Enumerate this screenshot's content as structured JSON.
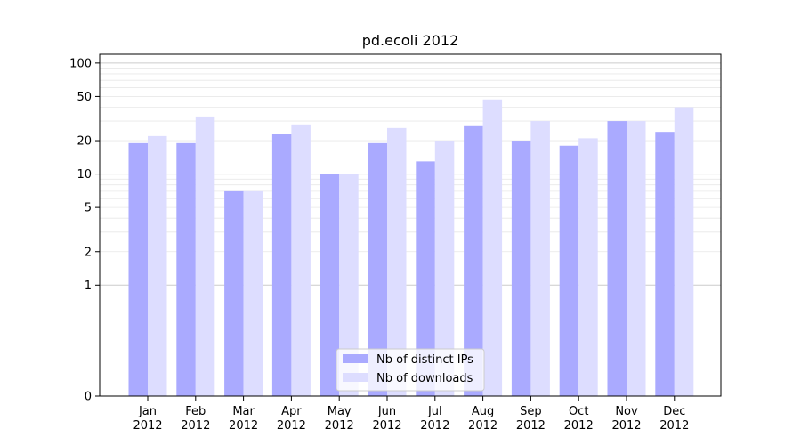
{
  "chart_data": {
    "type": "bar",
    "title": "pd.ecoli 2012",
    "xlabel": "",
    "ylabel": "",
    "y_scale": "symlog",
    "y_ticks": [
      "0",
      "1",
      "2",
      "5",
      "10",
      "20",
      "50",
      "100"
    ],
    "ylim": [
      0,
      120
    ],
    "categories": [
      [
        "Jan",
        "2012"
      ],
      [
        "Feb",
        "2012"
      ],
      [
        "Mar",
        "2012"
      ],
      [
        "Apr",
        "2012"
      ],
      [
        "May",
        "2012"
      ],
      [
        "Jun",
        "2012"
      ],
      [
        "Jul",
        "2012"
      ],
      [
        "Aug",
        "2012"
      ],
      [
        "Sep",
        "2012"
      ],
      [
        "Oct",
        "2012"
      ],
      [
        "Nov",
        "2012"
      ],
      [
        "Dec",
        "2012"
      ]
    ],
    "series": [
      {
        "name": "Nb of distinct IPs",
        "color": "#aaaaff",
        "values": [
          19,
          19,
          7,
          23,
          10,
          19,
          13,
          27,
          20,
          18,
          30,
          24
        ]
      },
      {
        "name": "Nb of downloads",
        "color": "#ddddff",
        "values": [
          22,
          33,
          7,
          28,
          10,
          26,
          20,
          47,
          30,
          21,
          30,
          40
        ]
      }
    ],
    "legend_position": "lower-center",
    "grid": true
  }
}
